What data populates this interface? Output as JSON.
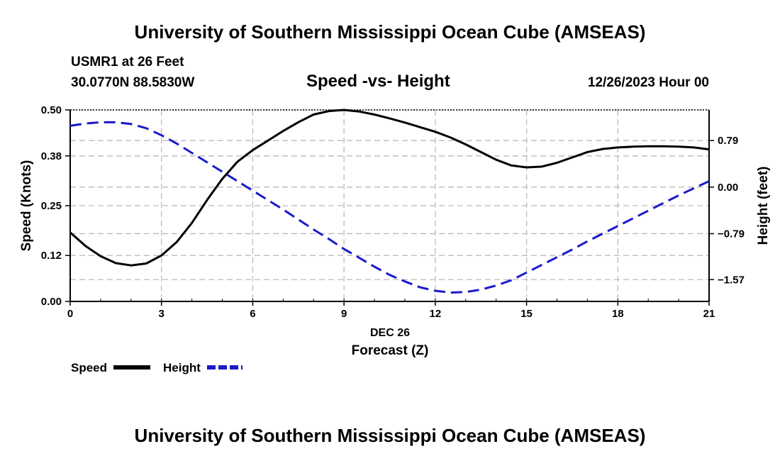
{
  "header": {
    "title": "University of Southern Mississippi Ocean Cube (AMSEAS)",
    "station": "USMR1 at 26 Feet",
    "coords": "30.0770N  88.5830W",
    "plot_title": "Speed -vs- Height",
    "date_label": "12/26/2023 Hour 00"
  },
  "footer": {
    "title": "University of Southern Mississippi Ocean Cube (AMSEAS)"
  },
  "legend": {
    "items": [
      {
        "label": "Speed",
        "color": "#000000",
        "style": "solid"
      },
      {
        "label": "Height",
        "color": "#1a1acc",
        "style": "dashed"
      }
    ]
  },
  "chart_data": {
    "type": "line",
    "title": "Speed -vs- Height",
    "xlabel": "Forecast (Z)",
    "x_sublabel": "DEC 26",
    "ylabel_left": "Speed (Knots)",
    "ylabel_right": "Height (feet)",
    "xlim": [
      0,
      21
    ],
    "x_ticks": [
      "0",
      "3",
      "6",
      "9",
      "12",
      "15",
      "18",
      "21"
    ],
    "ylim_left": [
      0,
      0.5
    ],
    "y_ticks_left": [
      "0.00",
      "0.12",
      "0.25",
      "0.38",
      "0.50"
    ],
    "ylim_right": [
      -1.94,
      1.31
    ],
    "y_ticks_right": [
      "0.79",
      "0.00",
      "-0.79",
      "-1.57"
    ],
    "grid": true,
    "series": [
      {
        "name": "Speed",
        "axis": "left",
        "color": "#000000",
        "x": [
          0,
          0.5,
          1,
          1.5,
          2,
          2.5,
          3,
          3.5,
          4,
          4.5,
          5,
          5.5,
          6,
          6.5,
          7,
          7.5,
          8,
          8.5,
          9,
          9.5,
          10,
          10.5,
          11,
          11.5,
          12,
          12.5,
          13,
          13.5,
          14,
          14.5,
          15,
          15.5,
          16,
          16.5,
          17,
          17.5,
          18,
          18.5,
          19,
          19.5,
          20,
          20.5,
          21
        ],
        "values": [
          0.18,
          0.145,
          0.118,
          0.1,
          0.094,
          0.099,
          0.12,
          0.155,
          0.205,
          0.265,
          0.32,
          0.365,
          0.395,
          0.42,
          0.445,
          0.468,
          0.488,
          0.497,
          0.5,
          0.496,
          0.488,
          0.478,
          0.467,
          0.455,
          0.443,
          0.428,
          0.41,
          0.39,
          0.37,
          0.355,
          0.35,
          0.352,
          0.362,
          0.376,
          0.39,
          0.398,
          0.402,
          0.404,
          0.405,
          0.405,
          0.404,
          0.402,
          0.397
        ]
      },
      {
        "name": "Height",
        "axis": "right",
        "color": "#1a1acc",
        "x": [
          0,
          0.5,
          1,
          1.5,
          2,
          2.5,
          3,
          3.5,
          4,
          4.5,
          5,
          5.5,
          6,
          6.5,
          7,
          7.5,
          8,
          8.5,
          9,
          9.5,
          10,
          10.5,
          11,
          11.5,
          12,
          12.5,
          13,
          13.5,
          14,
          14.5,
          15,
          15.5,
          16,
          16.5,
          17,
          17.5,
          18,
          18.5,
          19,
          19.5,
          20,
          20.5,
          21
        ],
        "values": [
          1.04,
          1.08,
          1.1,
          1.1,
          1.07,
          1.0,
          0.88,
          0.74,
          0.58,
          0.42,
          0.26,
          0.1,
          -0.06,
          -0.22,
          -0.38,
          -0.55,
          -0.72,
          -0.88,
          -1.05,
          -1.2,
          -1.35,
          -1.49,
          -1.6,
          -1.7,
          -1.76,
          -1.79,
          -1.78,
          -1.74,
          -1.67,
          -1.58,
          -1.45,
          -1.32,
          -1.19,
          -1.06,
          -0.92,
          -0.79,
          -0.66,
          -0.53,
          -0.4,
          -0.27,
          -0.14,
          -0.02,
          0.1
        ]
      }
    ]
  }
}
